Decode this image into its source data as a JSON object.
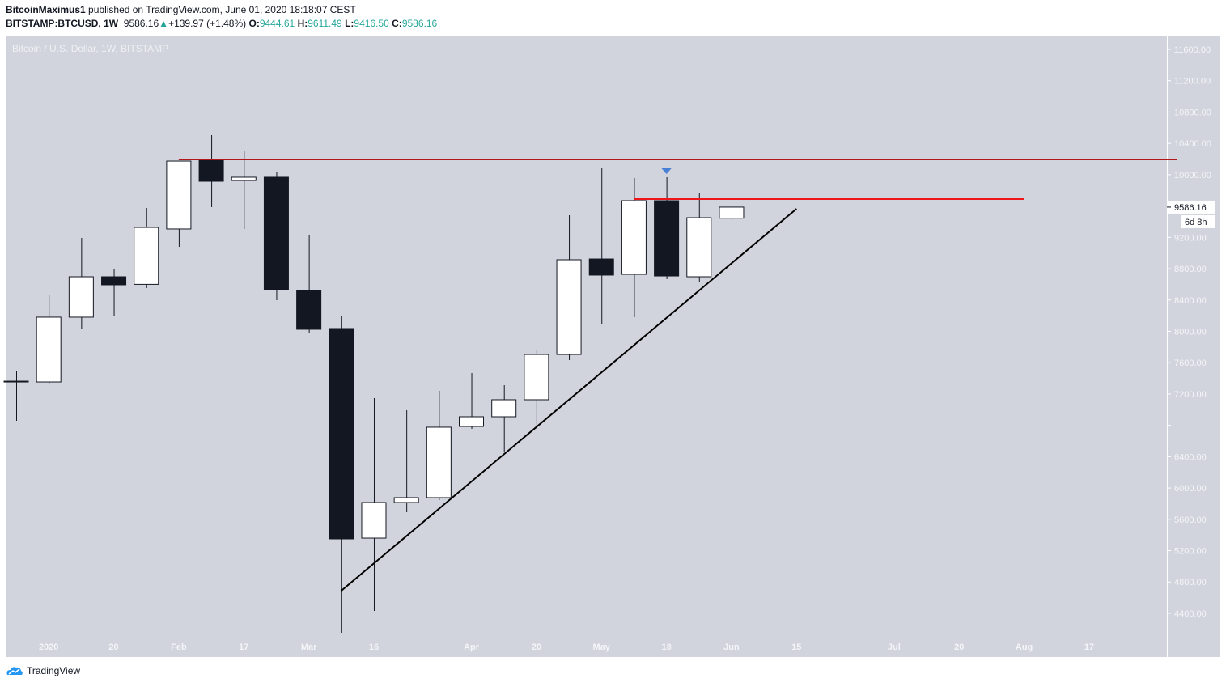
{
  "header": {
    "author": "BitcoinMaximus1",
    "published": "published on TradingView.com, June 01, 2020 18:18:07 CEST",
    "symbol": "BITSTAMP:BTCUSD, 1W",
    "last": "9586.16",
    "change": "+139.97 (+1.48%)",
    "o_label": "O:",
    "o": "9444.61",
    "h_label": "H:",
    "h": "9611.49",
    "l_label": "L:",
    "l": "9416.50",
    "c_label": "C:",
    "c": "9586.16"
  },
  "watermark": "Bitcoin / U.S. Dollar, 1W, BITSTAMP",
  "brand": "TradingView",
  "colors": {
    "background": "#d1d4dc",
    "up": "#ffffff",
    "down": "#131722",
    "resistance_dark": "#b2171b",
    "resistance": "#f0151a",
    "trendline": "#000000",
    "marker": "#4a7fd6",
    "value_green": "#26a69a"
  },
  "chart_data": {
    "type": "candlestick",
    "interval": "1W",
    "ylim": [
      4150,
      11800
    ],
    "y_ticks": [
      4400,
      4800,
      5200,
      5600,
      6000,
      6400,
      6800,
      7200,
      7600,
      8000,
      8400,
      8800,
      9200,
      9600,
      10000,
      10400,
      10800,
      11200,
      11600
    ],
    "y_tick_labels": [
      "4400.00",
      "4800.00",
      "5200.00",
      "5600.00",
      "6000.00",
      "6400.00",
      "",
      "7200.00",
      "7600.00",
      "8000.00",
      "8400.00",
      "8800.00",
      "9200.00",
      "",
      "10000.00",
      "10400.00",
      "10800.00",
      "11200.00",
      "11600.00"
    ],
    "x_tick_labels": [
      {
        "i": 1,
        "label": "2020"
      },
      {
        "i": 3,
        "label": "20"
      },
      {
        "i": 5,
        "label": "Feb"
      },
      {
        "i": 7,
        "label": "17"
      },
      {
        "i": 9,
        "label": "Mar"
      },
      {
        "i": 11,
        "label": "16"
      },
      {
        "i": 14,
        "label": "Apr"
      },
      {
        "i": 16,
        "label": "20"
      },
      {
        "i": 18,
        "label": "May"
      },
      {
        "i": 20,
        "label": "18"
      },
      {
        "i": 22,
        "label": "Jun"
      },
      {
        "i": 24,
        "label": "15"
      },
      {
        "i": 27,
        "label": "Jul"
      },
      {
        "i": 29,
        "label": "20"
      },
      {
        "i": 31,
        "label": "Aug"
      },
      {
        "i": 33,
        "label": "17"
      }
    ],
    "candles": [
      [
        7364,
        7499,
        6858,
        7364
      ],
      [
        7354,
        8470,
        7334,
        8181
      ],
      [
        8181,
        9193,
        8036,
        8697
      ],
      [
        8697,
        8790,
        8201,
        8594
      ],
      [
        8600,
        9575,
        8552,
        9327
      ],
      [
        9307,
        10174,
        9079,
        10174
      ],
      [
        10195,
        10505,
        9586,
        9916
      ],
      [
        9926,
        10298,
        9307,
        9968
      ],
      [
        9968,
        10030,
        8398,
        8532
      ],
      [
        8521,
        9224,
        7984,
        8026
      ],
      [
        8036,
        8191,
        4152,
        5350
      ],
      [
        5360,
        7148,
        4431,
        5815
      ],
      [
        5815,
        6993,
        5691,
        5877
      ],
      [
        5877,
        7240,
        5846,
        6776
      ],
      [
        6786,
        7468,
        6755,
        6910
      ],
      [
        6910,
        7313,
        6466,
        7127
      ],
      [
        7127,
        7757,
        6755,
        7705
      ],
      [
        7705,
        9482,
        7633,
        8914
      ],
      [
        8924,
        10081,
        8098,
        8718
      ],
      [
        8728,
        9957,
        8181,
        9668
      ],
      [
        9668,
        9968,
        8666,
        8707
      ],
      [
        8697,
        9761,
        8635,
        9451
      ],
      [
        9444.61,
        9611.49,
        9416.5,
        9586.16
      ]
    ],
    "candle_format": "[open,high,low,close]",
    "current_price_label": "9586.16",
    "countdown_label": "6d 8h",
    "lines": [
      {
        "kind": "resistance_dark",
        "from": {
          "i": 5,
          "price": 10195
        },
        "to": {
          "i": 35.7,
          "price": 10195
        }
      },
      {
        "kind": "resistance",
        "from": {
          "i": 19,
          "price": 9689
        },
        "to": {
          "i": 31,
          "price": 9689
        }
      },
      {
        "kind": "trendline",
        "from": {
          "i": 10,
          "price": 4689
        },
        "to": {
          "i": 24,
          "price": 9565
        }
      }
    ],
    "markers": [
      {
        "i": 20,
        "price": 10050,
        "shape": "triangle-down"
      }
    ]
  }
}
